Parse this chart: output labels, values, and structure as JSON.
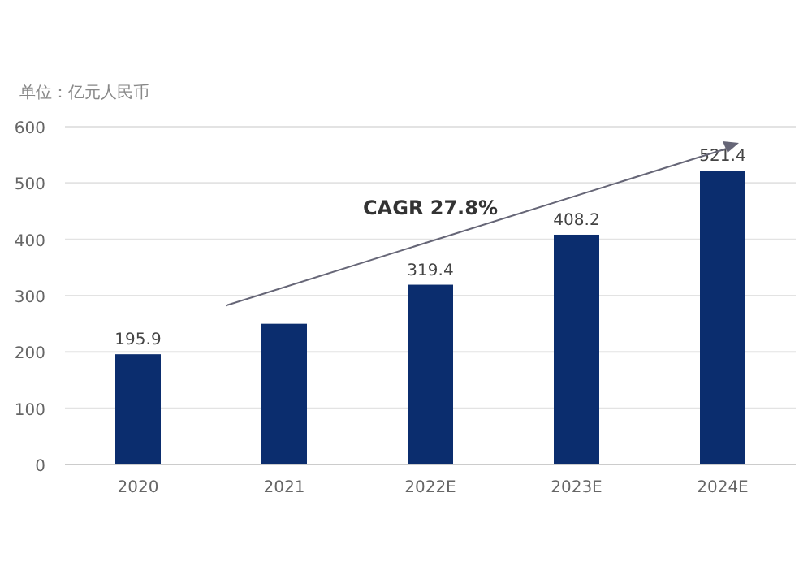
{
  "chart_data": {
    "type": "bar",
    "ylabel": "单位：亿元人民币",
    "categories": [
      "2020",
      "2021",
      "2022E",
      "2023E",
      "2024E"
    ],
    "values": [
      195.9,
      250,
      319.4,
      408.2,
      521.4
    ],
    "value_labels": [
      "195.9",
      null,
      "319.4",
      "408.2",
      "521.4"
    ],
    "color": "#0b2d6e",
    "ylim": [
      0,
      600
    ],
    "yticks": [
      0,
      100,
      200,
      300,
      400,
      500,
      600
    ],
    "grid": "y",
    "annotations": [
      "CAGR 27.8%"
    ]
  }
}
